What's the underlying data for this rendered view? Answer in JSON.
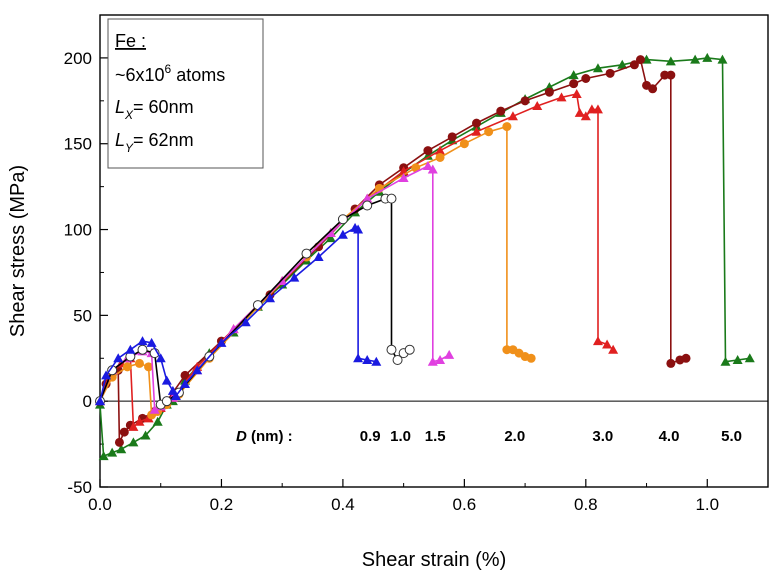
{
  "chart_data": {
    "type": "scatter",
    "xlabel": "Shear strain (%)",
    "ylabel": "Shear stress  (MPa)",
    "xlim": [
      0,
      1.1
    ],
    "ylim": [
      -50,
      225
    ],
    "x_ticks": [
      "0.0",
      "0.2",
      "0.4",
      "0.6",
      "0.8",
      "1.0"
    ],
    "y_ticks": [
      "-50",
      "0",
      "50",
      "100",
      "150",
      "200"
    ],
    "x_tick_values": [
      0,
      0.2,
      0.4,
      0.6,
      0.8,
      1.0
    ],
    "y_tick_values": [
      -50,
      0,
      50,
      100,
      150,
      200
    ],
    "info_box": {
      "material": "Fe :",
      "atoms_prefix": "~6x10",
      "atoms_exp": "6",
      "atoms_suffix": " atoms",
      "lx_letter": "L",
      "lx_sub": "X",
      "lx_value": "= 60nm",
      "ly_letter": "L",
      "ly_sub": "Y",
      "ly_value": "= 62nm"
    },
    "d_label_italic": "D",
    "d_label_rest": " (nm) :",
    "d_labels": [
      {
        "text": "0.9",
        "x": 0.445
      },
      {
        "text": "1.0",
        "x": 0.495
      },
      {
        "text": "1.5",
        "x": 0.552
      },
      {
        "text": "2.0",
        "x": 0.683
      },
      {
        "text": "3.0",
        "x": 0.828
      },
      {
        "text": "4.0",
        "x": 0.937
      },
      {
        "text": "5.0",
        "x": 1.04
      }
    ],
    "series": [
      {
        "D": "5.0",
        "color": "#1a7a1a",
        "marker": "triangle",
        "points": [
          [
            0,
            -2
          ],
          [
            0.006,
            -32
          ],
          [
            0.02,
            -30
          ],
          [
            0.035,
            -28
          ],
          [
            0.055,
            -24
          ],
          [
            0.075,
            -20
          ],
          [
            0.095,
            -12
          ],
          [
            0.11,
            -2
          ],
          [
            0.12,
            0
          ],
          [
            0.14,
            12
          ],
          [
            0.18,
            28
          ],
          [
            0.22,
            40
          ],
          [
            0.26,
            55
          ],
          [
            0.3,
            68
          ],
          [
            0.34,
            82
          ],
          [
            0.38,
            95
          ],
          [
            0.42,
            110
          ],
          [
            0.46,
            122
          ],
          [
            0.5,
            133
          ],
          [
            0.54,
            143
          ],
          [
            0.58,
            152
          ],
          [
            0.62,
            160
          ],
          [
            0.66,
            168
          ],
          [
            0.7,
            176
          ],
          [
            0.74,
            183
          ],
          [
            0.78,
            190
          ],
          [
            0.82,
            194
          ],
          [
            0.86,
            196
          ],
          [
            0.9,
            199
          ],
          [
            0.94,
            198
          ],
          [
            0.98,
            199
          ],
          [
            1.0,
            200
          ],
          [
            1.025,
            199
          ],
          [
            1.03,
            23
          ],
          [
            1.05,
            24
          ],
          [
            1.07,
            25
          ]
        ]
      },
      {
        "D": "4.0",
        "color": "#8b1010",
        "marker": "circle",
        "points": [
          [
            0,
            0
          ],
          [
            0.01,
            10
          ],
          [
            0.02,
            15
          ],
          [
            0.03,
            18
          ],
          [
            0.032,
            -24
          ],
          [
            0.04,
            -18
          ],
          [
            0.05,
            -14
          ],
          [
            0.07,
            -10
          ],
          [
            0.09,
            -6
          ],
          [
            0.11,
            0
          ],
          [
            0.14,
            15
          ],
          [
            0.2,
            35
          ],
          [
            0.28,
            62
          ],
          [
            0.36,
            90
          ],
          [
            0.42,
            112
          ],
          [
            0.46,
            126
          ],
          [
            0.5,
            136
          ],
          [
            0.54,
            146
          ],
          [
            0.58,
            154
          ],
          [
            0.62,
            162
          ],
          [
            0.66,
            169
          ],
          [
            0.7,
            175
          ],
          [
            0.74,
            180
          ],
          [
            0.78,
            185
          ],
          [
            0.8,
            188
          ],
          [
            0.84,
            191
          ],
          [
            0.88,
            196
          ],
          [
            0.89,
            199
          ],
          [
            0.9,
            184
          ],
          [
            0.91,
            182
          ],
          [
            0.93,
            190
          ],
          [
            0.94,
            190
          ],
          [
            0.94,
            22
          ],
          [
            0.955,
            24
          ],
          [
            0.965,
            25
          ]
        ]
      },
      {
        "D": "3.0",
        "color": "#e02020",
        "marker": "triangle",
        "points": [
          [
            0,
            0
          ],
          [
            0.015,
            15
          ],
          [
            0.035,
            22
          ],
          [
            0.05,
            25
          ],
          [
            0.055,
            -15
          ],
          [
            0.065,
            -12
          ],
          [
            0.08,
            -10
          ],
          [
            0.1,
            -4
          ],
          [
            0.12,
            2
          ],
          [
            0.16,
            20
          ],
          [
            0.22,
            42
          ],
          [
            0.3,
            70
          ],
          [
            0.38,
            98
          ],
          [
            0.44,
            118
          ],
          [
            0.5,
            134
          ],
          [
            0.56,
            146
          ],
          [
            0.62,
            157
          ],
          [
            0.68,
            166
          ],
          [
            0.72,
            172
          ],
          [
            0.76,
            177
          ],
          [
            0.785,
            179
          ],
          [
            0.79,
            168
          ],
          [
            0.8,
            166
          ],
          [
            0.81,
            170
          ],
          [
            0.82,
            170
          ],
          [
            0.82,
            35
          ],
          [
            0.835,
            33
          ],
          [
            0.845,
            30
          ]
        ]
      },
      {
        "D": "2.0",
        "color": "#f0901a",
        "marker": "circle",
        "points": [
          [
            0,
            0
          ],
          [
            0.02,
            14
          ],
          [
            0.045,
            20
          ],
          [
            0.065,
            22
          ],
          [
            0.08,
            20
          ],
          [
            0.085,
            -8
          ],
          [
            0.095,
            -6
          ],
          [
            0.11,
            -2
          ],
          [
            0.13,
            4
          ],
          [
            0.18,
            25
          ],
          [
            0.26,
            55
          ],
          [
            0.34,
            84
          ],
          [
            0.4,
            106
          ],
          [
            0.46,
            124
          ],
          [
            0.52,
            136
          ],
          [
            0.56,
            142
          ],
          [
            0.6,
            150
          ],
          [
            0.64,
            157
          ],
          [
            0.67,
            160
          ],
          [
            0.67,
            30
          ],
          [
            0.68,
            30
          ],
          [
            0.69,
            28
          ],
          [
            0.7,
            26
          ],
          [
            0.71,
            25
          ]
        ]
      },
      {
        "D": "1.5",
        "color": "#e040e0",
        "marker": "triangle",
        "points": [
          [
            0,
            0
          ],
          [
            0.02,
            18
          ],
          [
            0.045,
            25
          ],
          [
            0.07,
            29
          ],
          [
            0.085,
            28
          ],
          [
            0.09,
            -5
          ],
          [
            0.1,
            -3
          ],
          [
            0.12,
            2
          ],
          [
            0.16,
            18
          ],
          [
            0.22,
            42
          ],
          [
            0.3,
            70
          ],
          [
            0.38,
            98
          ],
          [
            0.44,
            118
          ],
          [
            0.5,
            130
          ],
          [
            0.54,
            137
          ],
          [
            0.548,
            135
          ],
          [
            0.548,
            23
          ],
          [
            0.56,
            24
          ],
          [
            0.575,
            27
          ]
        ]
      },
      {
        "D": "1.0",
        "color": "#000000",
        "marker": "open-circle",
        "points": [
          [
            0,
            0
          ],
          [
            0.02,
            18
          ],
          [
            0.05,
            26
          ],
          [
            0.07,
            30
          ],
          [
            0.09,
            28
          ],
          [
            0.1,
            -2
          ],
          [
            0.11,
            0
          ],
          [
            0.13,
            5
          ],
          [
            0.18,
            26
          ],
          [
            0.26,
            56
          ],
          [
            0.34,
            86
          ],
          [
            0.4,
            106
          ],
          [
            0.44,
            114
          ],
          [
            0.47,
            118
          ],
          [
            0.48,
            118
          ],
          [
            0.48,
            30
          ],
          [
            0.49,
            24
          ],
          [
            0.5,
            28
          ],
          [
            0.51,
            30
          ]
        ]
      },
      {
        "D": "0.9",
        "color": "#1a1ae0",
        "marker": "triangle",
        "points": [
          [
            0,
            0
          ],
          [
            0.01,
            15
          ],
          [
            0.03,
            25
          ],
          [
            0.05,
            30
          ],
          [
            0.07,
            35
          ],
          [
            0.085,
            34
          ],
          [
            0.1,
            25
          ],
          [
            0.11,
            12
          ],
          [
            0.12,
            6
          ],
          [
            0.125,
            3
          ],
          [
            0.14,
            10
          ],
          [
            0.16,
            18
          ],
          [
            0.2,
            34
          ],
          [
            0.24,
            46
          ],
          [
            0.28,
            60
          ],
          [
            0.32,
            72
          ],
          [
            0.36,
            84
          ],
          [
            0.4,
            97
          ],
          [
            0.42,
            101
          ],
          [
            0.425,
            100
          ],
          [
            0.425,
            25
          ],
          [
            0.44,
            24
          ],
          [
            0.455,
            23
          ]
        ]
      }
    ]
  }
}
